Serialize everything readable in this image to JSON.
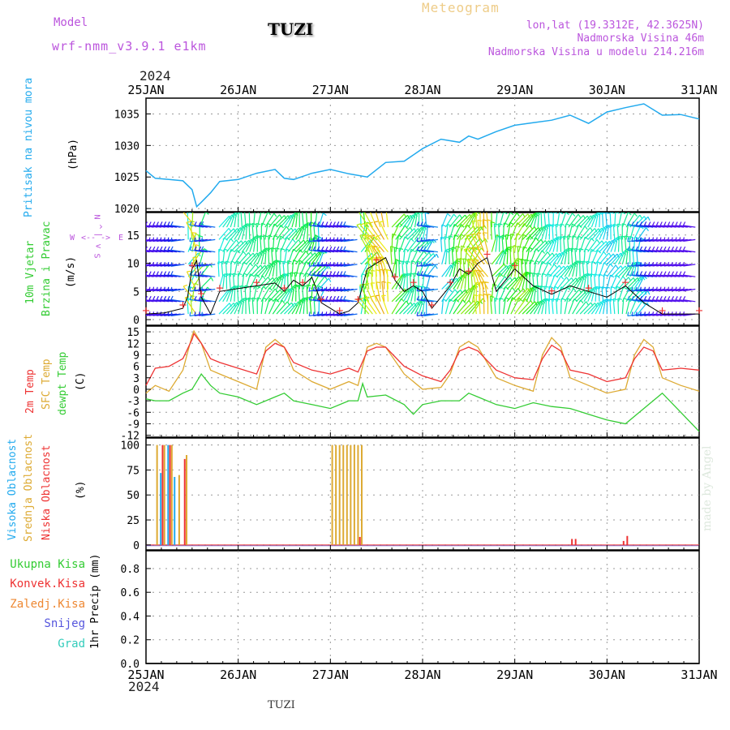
{
  "header": {
    "model_label": "Model",
    "model_value": "wrf-nmm_v3.9.1 e1km",
    "station": "TUZI",
    "meteogram_label": "Meteogram",
    "lonlat": "lon,lat (19.3312E, 42.3625N)",
    "altitude": "Nadmorska Visina 46m",
    "model_altitude": "Nadmorska Visina u modelu 214.216m",
    "year": "2024",
    "footer_station": "TUZI",
    "watermark": "made by Angel"
  },
  "colors": {
    "pressure": "#22aaee",
    "temp2m": "#ee3333",
    "sfc_temp": "#ddaa33",
    "dewpt": "#33cc33",
    "high_cloud": "#22aaee",
    "mid_cloud": "#ddaa33",
    "low_cloud": "#ee3333",
    "wind_label": "#33cc33",
    "compass": "#bb55dd",
    "wind_speed_line": "#000000",
    "gust_marker": "#ee3333"
  },
  "chart_data": [
    {
      "id": "pressure",
      "type": "line",
      "ylabel": [
        "Pritisak na nivou mora",
        "(hPa)"
      ],
      "ylim": [
        1019.5,
        1037.5
      ],
      "yticks": [
        1020,
        1025,
        1030,
        1035
      ],
      "x_days": [
        "25JAN",
        "26JAN",
        "27JAN",
        "28JAN",
        "29JAN",
        "30JAN",
        "31JAN"
      ],
      "series": [
        {
          "x": [
            0,
            0.1,
            0.25,
            0.4,
            0.5,
            0.55,
            0.6,
            0.7,
            0.8,
            1.0,
            1.2,
            1.4,
            1.5,
            1.6,
            1.8,
            2.0,
            2.2,
            2.4,
            2.6,
            2.8,
            3.0,
            3.2,
            3.4,
            3.5,
            3.6,
            3.8,
            4.0,
            4.2,
            4.4,
            4.6,
            4.8,
            5.0,
            5.2,
            5.4,
            5.6,
            5.8,
            6.0
          ],
          "values": [
            1026,
            1024.8,
            1024.6,
            1024.4,
            1023,
            1020.3,
            1021,
            1022.5,
            1024.3,
            1024.6,
            1025.6,
            1026.2,
            1024.8,
            1024.6,
            1025.6,
            1026.2,
            1025.5,
            1025,
            1027.3,
            1027.5,
            1029.5,
            1031,
            1030.5,
            1031.5,
            1031,
            1032.2,
            1033.2,
            1033.6,
            1034,
            1034.8,
            1033.5,
            1035.3,
            1036,
            1036.6,
            1034.8,
            1034.9,
            1034.2
          ]
        }
      ]
    },
    {
      "id": "wind",
      "type": "line",
      "ylabel": [
        "10m Vjetar",
        "Brzina i Pravac",
        "(m/s)"
      ],
      "compass": [
        "N",
        "E",
        "W",
        "S"
      ],
      "ylim": [
        -1,
        19
      ],
      "yticks": [
        0,
        5,
        10,
        15
      ],
      "series": [
        {
          "name": "speed",
          "x": [
            0,
            0.2,
            0.4,
            0.45,
            0.5,
            0.55,
            0.6,
            0.7,
            0.8,
            1.0,
            1.2,
            1.4,
            1.5,
            1.6,
            1.7,
            1.8,
            1.9,
            2.0,
            2.1,
            2.2,
            2.3,
            2.4,
            2.5,
            2.6,
            2.7,
            2.8,
            2.9,
            3.0,
            3.1,
            3.2,
            3.3,
            3.4,
            3.5,
            3.6,
            3.7,
            3.8,
            4.0,
            4.2,
            4.4,
            4.6,
            4.8,
            5.0,
            5.2,
            5.4,
            5.6,
            5.8,
            6.0
          ],
          "values": [
            1,
            1.2,
            2,
            4,
            9,
            10.5,
            4,
            1,
            5,
            5.5,
            6,
            6.5,
            5,
            7,
            6,
            7.5,
            3,
            2,
            1,
            1.5,
            3,
            9,
            10,
            11,
            7,
            5,
            6,
            5,
            2,
            4,
            6,
            9,
            8,
            10,
            11,
            5,
            9,
            6,
            4.5,
            6,
            5,
            4,
            6,
            3,
            1,
            1,
            1
          ]
        }
      ]
    },
    {
      "id": "temperature",
      "type": "line",
      "ylabel": [
        "2m Temp",
        "SFC Temp",
        "dewpt Temp",
        "(C)"
      ],
      "ylim": [
        -12.5,
        16.5
      ],
      "yticks": [
        -12,
        -9,
        -6,
        -3,
        0,
        3,
        6,
        9,
        12,
        15
      ],
      "series": [
        {
          "name": "2m Temp",
          "x": [
            0,
            0.1,
            0.25,
            0.4,
            0.5,
            0.52,
            0.6,
            0.7,
            0.8,
            1.0,
            1.2,
            1.3,
            1.4,
            1.5,
            1.6,
            1.8,
            2.0,
            2.2,
            2.3,
            2.4,
            2.5,
            2.6,
            2.8,
            3.0,
            3.2,
            3.3,
            3.4,
            3.5,
            3.6,
            3.8,
            4.0,
            4.2,
            4.3,
            4.4,
            4.5,
            4.6,
            4.8,
            5.0,
            5.2,
            5.3,
            5.4,
            5.5,
            5.6,
            5.8,
            6.0
          ],
          "values": [
            1,
            5.5,
            6,
            8,
            13,
            14.5,
            12,
            8,
            7,
            5.5,
            4,
            10,
            12,
            11,
            7,
            5,
            4,
            5.5,
            4.5,
            10,
            11,
            11,
            6,
            3.5,
            2,
            5,
            10,
            11,
            10,
            5,
            3,
            2.5,
            8,
            11.5,
            10,
            5,
            4,
            2,
            3,
            8,
            11,
            10,
            5,
            5.5,
            5
          ]
        },
        {
          "name": "SFC Temp",
          "x": [
            0,
            0.1,
            0.25,
            0.4,
            0.5,
            0.52,
            0.6,
            0.7,
            0.8,
            1.0,
            1.2,
            1.3,
            1.4,
            1.5,
            1.6,
            1.8,
            2.0,
            2.2,
            2.3,
            2.4,
            2.5,
            2.6,
            2.8,
            3.0,
            3.2,
            3.3,
            3.4,
            3.5,
            3.6,
            3.8,
            4.0,
            4.2,
            4.3,
            4.4,
            4.5,
            4.6,
            4.8,
            5.0,
            5.2,
            5.3,
            5.4,
            5.5,
            5.6,
            5.8,
            6.0
          ],
          "values": [
            -1,
            1,
            -0.5,
            5,
            14,
            15.2,
            12,
            5,
            4,
            2,
            0,
            11,
            13,
            11,
            5,
            2,
            0,
            2,
            1,
            11,
            12,
            11,
            4,
            0,
            0.5,
            4,
            11,
            12.5,
            11,
            3,
            1,
            -0.5,
            9,
            13.5,
            11,
            3,
            1,
            -1,
            0,
            9,
            13,
            11,
            3,
            1,
            -0.5
          ]
        },
        {
          "name": "dewpt Temp",
          "x": [
            0,
            0.1,
            0.25,
            0.4,
            0.5,
            0.6,
            0.7,
            0.8,
            1.0,
            1.2,
            1.4,
            1.5,
            1.6,
            1.8,
            2.0,
            2.2,
            2.3,
            2.35,
            2.4,
            2.6,
            2.8,
            2.9,
            3.0,
            3.2,
            3.4,
            3.5,
            3.6,
            3.8,
            4.0,
            4.2,
            4.4,
            4.6,
            4.8,
            5.0,
            5.2,
            5.4,
            5.6,
            5.8,
            6.0
          ],
          "values": [
            -2.5,
            -3,
            -3,
            -1,
            0,
            4,
            1,
            -1,
            -2,
            -4,
            -2,
            -1,
            -3,
            -4,
            -5,
            -3,
            -3,
            1.5,
            -2,
            -1.5,
            -4,
            -6.5,
            -4,
            -3,
            -3,
            -1,
            -2,
            -4,
            -5,
            -3.5,
            -4.5,
            -5,
            -6.5,
            -8,
            -9,
            -5,
            -1,
            -6,
            -11
          ]
        }
      ]
    },
    {
      "id": "clouds",
      "type": "bar",
      "ylabel": [
        "Visoka Oblacnost",
        "Srednja Oblacnost",
        "Niska Oblacnost",
        "(%)"
      ],
      "ylim": [
        -5,
        107
      ],
      "yticks": [
        0,
        25,
        50,
        75,
        100
      ],
      "series": [
        {
          "name": "Visoka Oblacnost",
          "x": [
            0.16,
            0.24,
            0.31
          ],
          "values": [
            72,
            100,
            68
          ]
        },
        {
          "name": "Srednja Oblacnost",
          "x": [
            0.12,
            0.2,
            0.28,
            0.36,
            0.44,
            2.02,
            2.06,
            2.1,
            2.14,
            2.18,
            2.22,
            2.26,
            2.3,
            2.34
          ],
          "values": [
            100,
            100,
            100,
            70,
            90,
            100,
            100,
            100,
            100,
            100,
            100,
            100,
            100,
            100
          ]
        },
        {
          "name": "Niska Oblacnost",
          "x": [
            0.18,
            0.26,
            0.42,
            2.32,
            4.62,
            4.66,
            5.18,
            5.22
          ],
          "values": [
            100,
            100,
            86,
            8,
            6,
            6,
            4,
            9
          ]
        }
      ]
    },
    {
      "id": "precip",
      "type": "bar",
      "ylabel": [
        "Ukupna Kisa",
        "Konvek.Kisa",
        "Zaledj.Kisa",
        "Snijeg",
        "Grad",
        "1hr Precip (mm)"
      ],
      "ylim": [
        0,
        0.95
      ],
      "yticks": [
        0,
        0.2,
        0.4,
        0.6,
        0.8
      ],
      "series": []
    }
  ]
}
